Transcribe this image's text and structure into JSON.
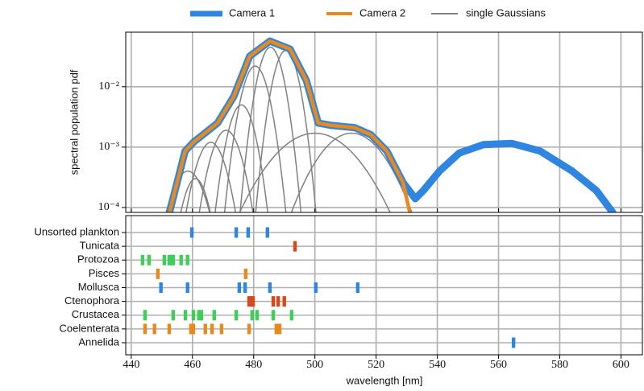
{
  "chart_data": [
    {
      "type": "line",
      "ylabel": "spectral population pdf",
      "log_y": true,
      "grid": true,
      "legend": "upper center",
      "xlim": [
        438.2,
        607
      ],
      "xticks": [
        440,
        460,
        480,
        500,
        520,
        540,
        560,
        580,
        600
      ],
      "ylim": [
        8.3e-05,
        0.08
      ],
      "yticks": [
        {
          "value": 0.0001,
          "label": "10⁻⁴"
        },
        {
          "value": 0.001,
          "label": "10⁻³"
        },
        {
          "value": 0.01,
          "label": "10⁻²"
        }
      ],
      "series": [
        {
          "name": "Camera 1",
          "color": "#2f86e0",
          "x": [
            452.5,
            457.6,
            460.3,
            468.2,
            473.5,
            478.7,
            485.3,
            491.9,
            497.2,
            501.1,
            505.1,
            513,
            518.3,
            523.5,
            528.8,
            532.8,
            535.4,
            540.7,
            547.2,
            555.1,
            564.4,
            573.6,
            584.1,
            592,
            597.3
          ],
          "values": [
            8.3e-05,
            0.00086,
            0.0012,
            0.0025,
            0.0069,
            0.032,
            0.057,
            0.042,
            0.0127,
            0.0025,
            0.0023,
            0.0021,
            0.0016,
            0.00086,
            0.00026,
            0.00014,
            0.00019,
            0.0004,
            0.0008,
            0.0011,
            0.00115,
            0.00086,
            0.0004,
            0.00019,
            8.3e-05
          ]
        },
        {
          "name": "Camera 2",
          "color": "#e8891c",
          "x": [
            452.5,
            457.6,
            460.3,
            468.2,
            473.5,
            478.7,
            485.3,
            491.9,
            497.2,
            501.1,
            505.1,
            513,
            518.3,
            523.5,
            528.8,
            531
          ],
          "values": [
            8.3e-05,
            0.00086,
            0.0012,
            0.0025,
            0.0069,
            0.032,
            0.057,
            0.042,
            0.0127,
            0.0025,
            0.0023,
            0.0021,
            0.0016,
            0.00086,
            0.00026,
            8.3e-05
          ]
        },
        {
          "name": "single Gaussians",
          "color": "#808080",
          "components": [
            {
              "mean": 458.5,
              "sd": 4,
              "peak": 0.0004
            },
            {
              "mean": 461,
              "sd": 3,
              "peak": 0.0003
            },
            {
              "mean": 466,
              "sd": 3.5,
              "peak": 0.0012
            },
            {
              "mean": 471,
              "sd": 3.5,
              "peak": 0.0019
            },
            {
              "mean": 476,
              "sd": 3,
              "peak": 0.005
            },
            {
              "mean": 480.5,
              "sd": 3,
              "peak": 0.022
            },
            {
              "mean": 485.5,
              "sd": 2.8,
              "peak": 0.045
            },
            {
              "mean": 490.5,
              "sd": 2.8,
              "peak": 0.04
            },
            {
              "mean": 500,
              "sd": 10,
              "peak": 0.0017
            },
            {
              "mean": 512,
              "sd": 8,
              "peak": 0.0017
            }
          ]
        }
      ]
    },
    {
      "type": "rug",
      "xlabel": "wavelength [nm]",
      "grid": true,
      "xlim": [
        438.2,
        607
      ],
      "xticks": [
        440,
        460,
        480,
        500,
        520,
        540,
        560,
        580,
        600
      ],
      "categories": [
        "Unsorted plankton",
        "Tunicata",
        "Protozoa",
        "Pisces",
        "Mollusca",
        "Ctenophora",
        "Crustacea",
        "Coelenterata",
        "Annelida"
      ],
      "colors": [
        "#2f86e0",
        "#d9481b",
        "#3ecf5a",
        "#e8891c",
        "#2f86e0",
        "#d9481b",
        "#3ecf5a",
        "#e8891c",
        "#2f86e0"
      ],
      "values": [
        [
          459.8,
          474.3,
          478.2,
          484.5
        ],
        [
          493.5
        ],
        [
          443.7,
          445.8,
          450.8,
          452.4,
          453.2,
          453.7,
          456.3,
          458.4
        ],
        [
          448.7,
          477.4
        ],
        [
          449.7,
          458.4,
          475.3,
          477.2,
          485.3,
          500.3,
          514
        ],
        [
          478.5,
          479.3,
          479.8,
          486.4,
          488,
          490
        ],
        [
          444.5,
          453.7,
          457.7,
          460.3,
          462.1,
          462.9,
          467.1,
          474.3,
          479.5,
          481.1,
          486.4,
          492.4
        ],
        [
          444.5,
          447.6,
          452.4,
          459.5,
          460.3,
          464.2,
          466.4,
          469.5,
          478.5,
          487.4,
          488.5
        ],
        [
          564.9
        ]
      ]
    }
  ]
}
